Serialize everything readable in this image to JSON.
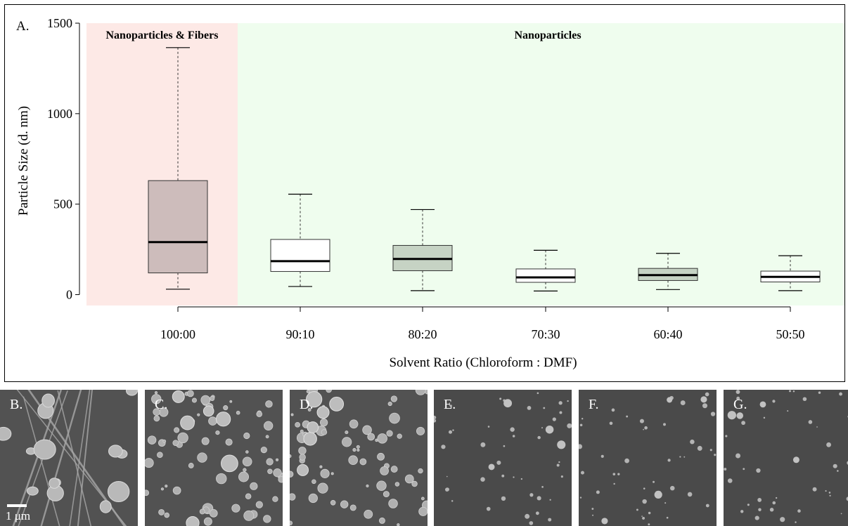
{
  "panel_a_label": "A.",
  "chart_data": {
    "type": "box",
    "title": "",
    "xlabel": "Solvent Ratio (Chloroform : DMF)",
    "ylabel": "Particle Size (d. nm)",
    "ylim": [
      -60,
      1500
    ],
    "yticks": [
      0,
      500,
      1000,
      1500
    ],
    "categories": [
      "100:00",
      "90:10",
      "80:20",
      "70:30",
      "60:40",
      "50:50"
    ],
    "boxes": [
      {
        "category": "100:00",
        "min": 30,
        "q1": 120,
        "median": 290,
        "q3": 630,
        "max": 1365,
        "fill": "#cdbcbb"
      },
      {
        "category": "90:10",
        "min": 45,
        "q1": 128,
        "median": 185,
        "q3": 305,
        "max": 555,
        "fill": "#ffffff"
      },
      {
        "category": "80:20",
        "min": 22,
        "q1": 132,
        "median": 197,
        "q3": 272,
        "max": 470,
        "fill": "#c6d3c4"
      },
      {
        "category": "70:30",
        "min": 20,
        "q1": 68,
        "median": 95,
        "q3": 142,
        "max": 245,
        "fill": "#ffffff"
      },
      {
        "category": "60:40",
        "min": 28,
        "q1": 78,
        "median": 108,
        "q3": 145,
        "max": 228,
        "fill": "#c6d3c4"
      },
      {
        "category": "50:50",
        "min": 22,
        "q1": 70,
        "median": 98,
        "q3": 130,
        "max": 215,
        "fill": "#ffffff"
      }
    ],
    "regions": [
      {
        "label": "Nanoparticles & Fibers",
        "color": "#fde9e6"
      },
      {
        "label": "Nanoparticles",
        "color": "#effdee"
      }
    ],
    "grid": false
  },
  "sem_images": [
    {
      "letter": "B.",
      "scale_label": "1 μm",
      "kind": "fibers"
    },
    {
      "letter": "C.",
      "kind": "large"
    },
    {
      "letter": "D.",
      "kind": "large"
    },
    {
      "letter": "E.",
      "kind": "small"
    },
    {
      "letter": "F.",
      "kind": "small"
    },
    {
      "letter": "G.",
      "kind": "small"
    }
  ]
}
